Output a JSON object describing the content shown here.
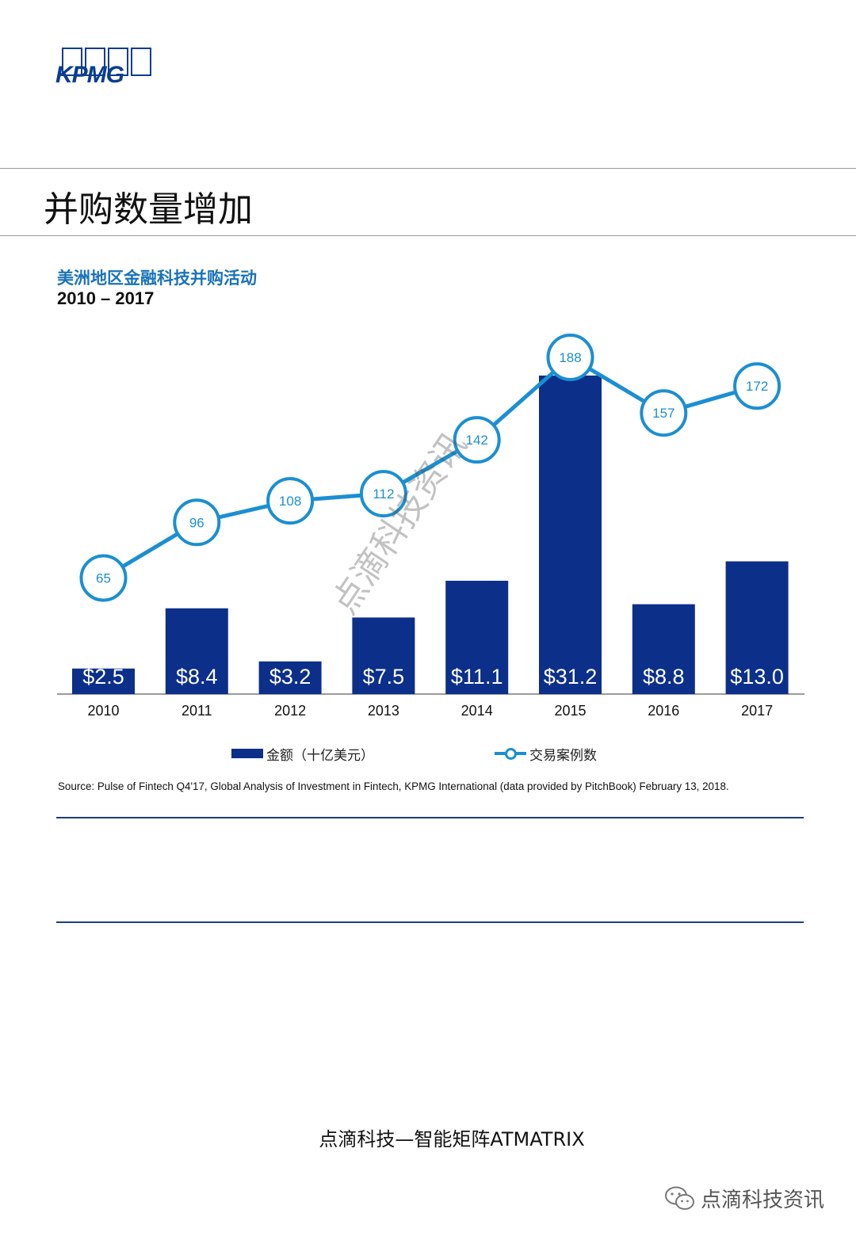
{
  "header": {
    "logo_text": "KPMG",
    "page_title": "并购数量增加"
  },
  "chart_data": {
    "type": "bar",
    "title": "美洲地区金融科技并购活动",
    "subtitle": "2010 – 2017",
    "categories": [
      "2010",
      "2011",
      "2012",
      "2013",
      "2014",
      "2015",
      "2016",
      "2017"
    ],
    "series": [
      {
        "name": "金额（十亿美元）",
        "type": "bar",
        "values": [
          2.5,
          8.4,
          3.2,
          7.5,
          11.1,
          31.2,
          8.8,
          13.0
        ],
        "labels": [
          "$2.5",
          "$8.4",
          "$3.2",
          "$7.5",
          "$11.1",
          "$31.2",
          "$8.8",
          "$13.0"
        ],
        "color": "#0c2f8a"
      },
      {
        "name": "交易案例数",
        "type": "line",
        "values": [
          65,
          96,
          108,
          112,
          142,
          188,
          157,
          172
        ],
        "color": "#1b8fd2"
      }
    ],
    "legend": "bottom-center",
    "grid": false
  },
  "source": "Source: Pulse of Fintech Q4'17, Global Analysis of Investment in Fintech, KPMG International (data provided by PitchBook) February 13, 2018.",
  "footer": {
    "text": "点滴科技—智能矩阵ATMATRIX",
    "wechat_account": "点滴科技资讯",
    "watermark": "点滴科技资讯"
  },
  "icons": {
    "logo": "kpmg-logo",
    "wechat": "wechat-icon"
  }
}
